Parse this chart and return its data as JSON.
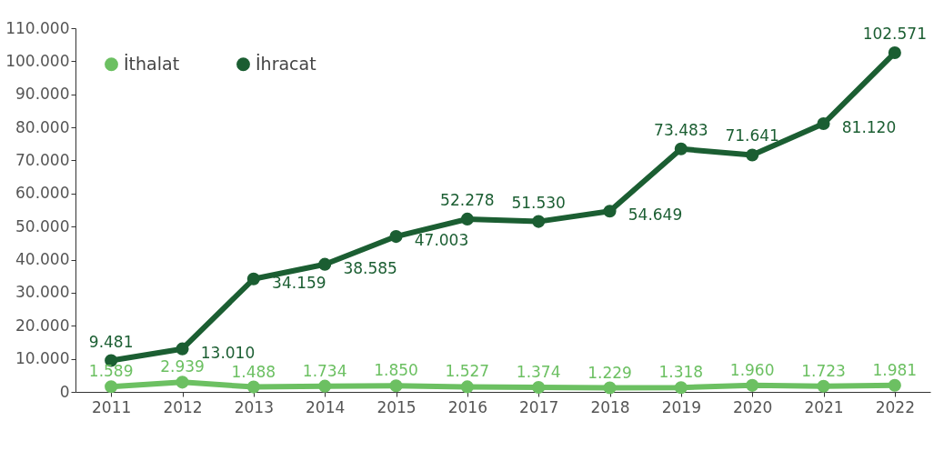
{
  "chart_data": {
    "type": "line",
    "categories": [
      "2011",
      "2012",
      "2013",
      "2014",
      "2015",
      "2016",
      "2017",
      "2018",
      "2019",
      "2020",
      "2021",
      "2022"
    ],
    "series": [
      {
        "name": "İthalat",
        "color": "#6cc062",
        "values": [
          1589,
          2939,
          1488,
          1734,
          1850,
          1527,
          1374,
          1229,
          1318,
          1960,
          1723,
          1981
        ],
        "value_labels": [
          "1.589",
          "2.939",
          "1.488",
          "1.734",
          "1.850",
          "1.527",
          "1.374",
          "1.229",
          "1.318",
          "1.960",
          "1.723",
          "1.981"
        ]
      },
      {
        "name": "İhracat",
        "color": "#1b5e32",
        "values": [
          9481,
          13010,
          34159,
          38585,
          47003,
          52278,
          51530,
          54649,
          73483,
          71641,
          81120,
          102571
        ],
        "value_labels": [
          "9.481",
          "13.010",
          "34.159",
          "38.585",
          "47.003",
          "52.278",
          "51.530",
          "54.649",
          "73.483",
          "71.641",
          "81.120",
          "102.571"
        ]
      }
    ],
    "ylim": [
      0,
      110000
    ],
    "yticks": [
      {
        "value": 0,
        "label": "0"
      },
      {
        "value": 10000,
        "label": "10.000"
      },
      {
        "value": 20000,
        "label": "20.000"
      },
      {
        "value": 30000,
        "label": "30.000"
      },
      {
        "value": 40000,
        "label": "40.000"
      },
      {
        "value": 50000,
        "label": "50.000"
      },
      {
        "value": 60000,
        "label": "60.000"
      },
      {
        "value": 70000,
        "label": "70.000"
      },
      {
        "value": 80000,
        "label": "80.000"
      },
      {
        "value": 90000,
        "label": "90.000"
      },
      {
        "value": 100000,
        "label": "100.000"
      },
      {
        "value": 110000,
        "label": "110.000"
      }
    ],
    "legend": "top left",
    "marker": "circle",
    "line_style": "solid",
    "grid": false
  }
}
